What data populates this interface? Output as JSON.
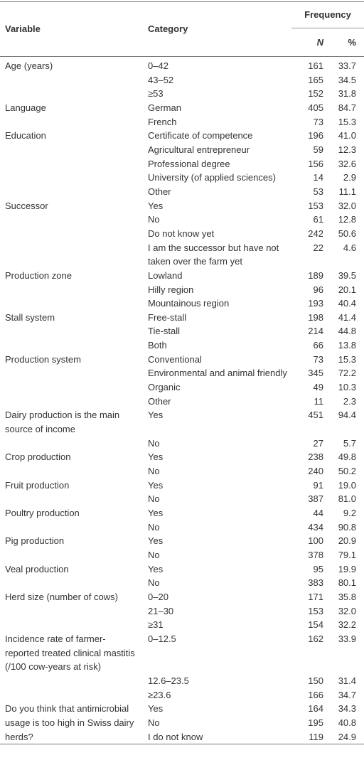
{
  "table": {
    "header": {
      "variable": "Variable",
      "category": "Category",
      "frequency": "Frequency",
      "n": "N",
      "pct": "%"
    },
    "groups": [
      {
        "variable": "Age (years)",
        "rows": [
          [
            "0–42",
            161,
            "33.7"
          ],
          [
            "43–52",
            165,
            "34.5"
          ],
          [
            "≥53",
            152,
            "31.8"
          ]
        ]
      },
      {
        "variable": "Language",
        "rows": [
          [
            "German",
            405,
            "84.7"
          ],
          [
            "French",
            73,
            "15.3"
          ]
        ]
      },
      {
        "variable": "Education",
        "rows": [
          [
            "Certificate of competence",
            196,
            "41.0"
          ],
          [
            "Agricultural entrepreneur",
            59,
            "12.3"
          ],
          [
            "Professional degree",
            156,
            "32.6"
          ],
          [
            "University (of applied sciences)",
            14,
            "2.9"
          ],
          [
            "Other",
            53,
            "11.1"
          ]
        ]
      },
      {
        "variable": "Successor",
        "rows": [
          [
            "Yes",
            153,
            "32.0"
          ],
          [
            "No",
            61,
            "12.8"
          ],
          [
            "Do not know yet",
            242,
            "50.6"
          ],
          [
            "I am the successor but have not taken over the farm yet",
            22,
            "4.6"
          ]
        ]
      },
      {
        "variable": "Production zone",
        "rows": [
          [
            "Lowland",
            189,
            "39.5"
          ],
          [
            "Hilly region",
            96,
            "20.1"
          ],
          [
            "Mountainous region",
            193,
            "40.4"
          ]
        ]
      },
      {
        "variable": "Stall system",
        "rows": [
          [
            "Free-stall",
            198,
            "41.4"
          ],
          [
            "Tie-stall",
            214,
            "44.8"
          ],
          [
            "Both",
            66,
            "13.8"
          ]
        ]
      },
      {
        "variable": "Production system",
        "rows": [
          [
            "Conventional",
            73,
            "15.3"
          ],
          [
            "Environmental and animal friendly",
            345,
            "72.2"
          ],
          [
            "Organic",
            49,
            "10.3"
          ],
          [
            "Other",
            11,
            "2.3"
          ]
        ]
      },
      {
        "variable": "Dairy production is the main source of income",
        "rows": [
          [
            "Yes",
            451,
            "94.4"
          ],
          [
            "No",
            27,
            "5.7"
          ]
        ]
      },
      {
        "variable": "Crop production",
        "rows": [
          [
            "Yes",
            238,
            "49.8"
          ],
          [
            "No",
            240,
            "50.2"
          ]
        ]
      },
      {
        "variable": "Fruit production",
        "rows": [
          [
            "Yes",
            91,
            "19.0"
          ],
          [
            "No",
            387,
            "81.0"
          ]
        ]
      },
      {
        "variable": "Poultry production",
        "rows": [
          [
            "Yes",
            44,
            "9.2"
          ],
          [
            "No",
            434,
            "90.8"
          ]
        ]
      },
      {
        "variable": "Pig production",
        "rows": [
          [
            "Yes",
            100,
            "20.9"
          ],
          [
            "No",
            378,
            "79.1"
          ]
        ]
      },
      {
        "variable": "Veal production",
        "rows": [
          [
            "Yes",
            95,
            "19.9"
          ],
          [
            "No",
            383,
            "80.1"
          ]
        ]
      },
      {
        "variable": "Herd size (number of cows)",
        "rows": [
          [
            "0–20",
            171,
            "35.8"
          ],
          [
            "21–30",
            153,
            "32.0"
          ],
          [
            "≥31",
            154,
            "32.2"
          ]
        ]
      },
      {
        "variable": "Incidence rate of farmer-reported treated clinical mastitis (/100 cow-years at risk)",
        "rows": [
          [
            "0–12.5",
            162,
            "33.9"
          ],
          [
            "12.6–23.5",
            150,
            "31.4"
          ],
          [
            "≥23.6",
            166,
            "34.7"
          ]
        ]
      },
      {
        "variable": "Do you think that antimicrobial usage is too high in Swiss dairy herds?",
        "rows": [
          [
            "Yes",
            164,
            "34.3"
          ],
          [
            "No",
            195,
            "40.8"
          ],
          [
            "I do not know",
            119,
            "24.9"
          ]
        ]
      }
    ]
  }
}
